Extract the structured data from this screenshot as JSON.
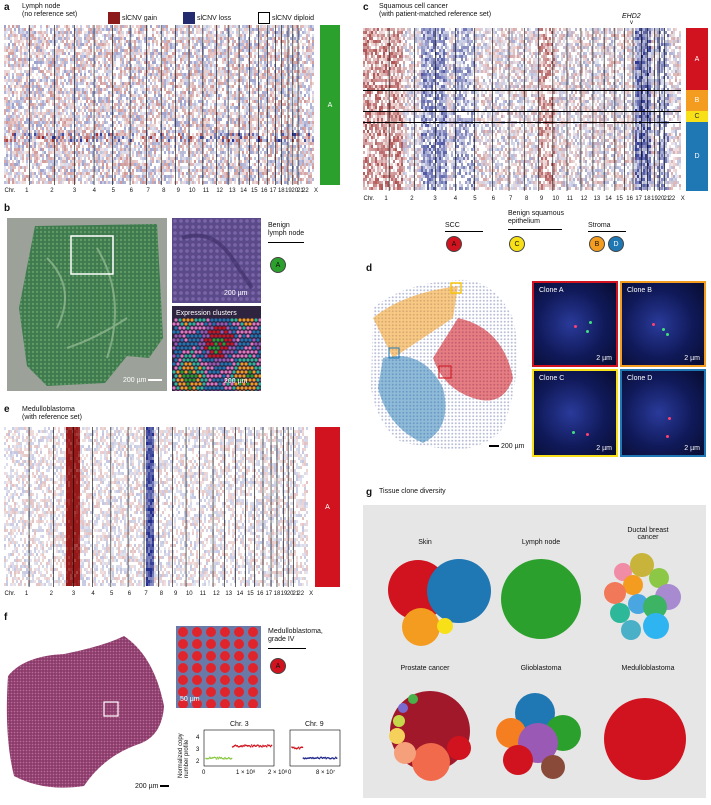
{
  "panel_a": {
    "letter": "a",
    "title_line1": "Lymph node",
    "title_line2": "(no reference set)",
    "legend": {
      "gain": "slCNV gain",
      "loss": "slCNV loss",
      "diploid": "slCNV diploid"
    },
    "cluster_label": "A",
    "chr_prefix": "Chr.",
    "chromosomes": [
      "1",
      "2",
      "3",
      "4",
      "5",
      "6",
      "7",
      "8",
      "9",
      "10",
      "11",
      "12",
      "13",
      "14",
      "15",
      "16",
      "17",
      "18",
      "19",
      "20",
      "21",
      "22",
      "X"
    ]
  },
  "panel_b": {
    "letter": "b",
    "label_line1": "Benign",
    "label_line2": "lymph node",
    "cluster": "A",
    "scale1": "200 µm",
    "scale2": "200 µm",
    "scale3": "200 µm",
    "inset_title": "Expression clusters"
  },
  "panel_c": {
    "letter": "c",
    "title_line1": "Squamous cell cancer",
    "title_line2": "(with patient-matched reference set)",
    "gene": "EHD2",
    "gene_marker": "v",
    "clusters": [
      "A",
      "B",
      "C",
      "D"
    ],
    "chr_prefix": "Chr.",
    "chromosomes": [
      "1",
      "2",
      "3",
      "4",
      "5",
      "6",
      "7",
      "8",
      "9",
      "10",
      "11",
      "12",
      "13",
      "14",
      "15",
      "16",
      "17",
      "18",
      "19",
      "20",
      "21",
      "22",
      "X"
    ],
    "legend": {
      "scc": "SCC",
      "scc_cluster": "A",
      "benign_line1": "Benign squamous",
      "benign_line2": "epithelium",
      "benign_cluster": "C",
      "stroma": "Stroma",
      "stroma_clusters": [
        "B",
        "D"
      ]
    }
  },
  "panel_d": {
    "letter": "d",
    "scale": "200 µm",
    "clones": [
      {
        "label": "Clone A",
        "scale": "2 µm"
      },
      {
        "label": "Clone B",
        "scale": "2 µm"
      },
      {
        "label": "Clone C",
        "scale": "2 µm"
      },
      {
        "label": "Clone D",
        "scale": "2 µm"
      }
    ]
  },
  "panel_e": {
    "letter": "e",
    "title_line1": "Medulloblastoma",
    "title_line2": "(with reference set)",
    "cluster_label": "A",
    "chr_prefix": "Chr.",
    "chromosomes": [
      "1",
      "2",
      "3",
      "4",
      "5",
      "6",
      "7",
      "8",
      "9",
      "10",
      "11",
      "12",
      "13",
      "14",
      "15",
      "16",
      "17",
      "18",
      "19",
      "20",
      "21",
      "22",
      "X"
    ]
  },
  "panel_f": {
    "letter": "f",
    "label_line1": "Medulloblastoma,",
    "label_line2": "grade IV",
    "cluster": "A",
    "scale_main": "200 µm",
    "scale_inset": "50 µm",
    "ylabel_line1": "Normalized copy",
    "ylabel_line2": "number profile",
    "plot1": {
      "title": "Chr. 3",
      "yticks": [
        "2",
        "3",
        "4"
      ],
      "xticks": [
        "0",
        "1 × 10⁸",
        "2 × 10⁸"
      ]
    },
    "plot2": {
      "title": "Chr. 9",
      "xticks": [
        "0",
        "8 × 10⁷"
      ]
    }
  },
  "panel_g": {
    "letter": "g",
    "title": "Tissue clone diversity",
    "tissues": [
      "Skin",
      "Lymph node",
      "Ductal breast cancer",
      "Prostate cancer",
      "Glioblastoma",
      "Medulloblastoma"
    ]
  },
  "colors": {
    "gain": "#8b1a1a",
    "loss": "#232a6e",
    "green": "#2ca02c",
    "red": "#d0131e",
    "orange": "#f39c1f",
    "yellow": "#f7e017",
    "blue": "#1f77b4"
  }
}
